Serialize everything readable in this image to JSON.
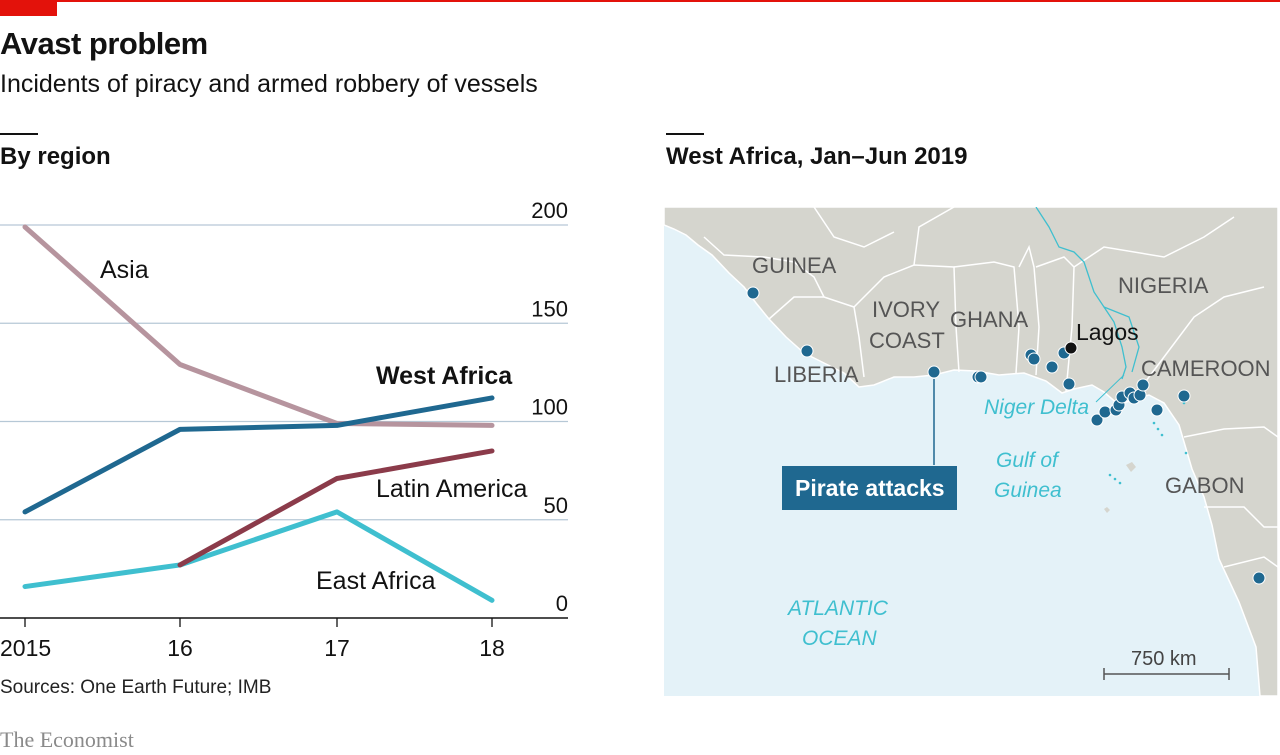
{
  "header": {
    "title": "Avast problem",
    "subtitle": "Incidents of piracy and armed robbery of vessels"
  },
  "left_panel": {
    "heading": "By region"
  },
  "right_panel": {
    "heading": "West Africa, Jan–Jun 2019"
  },
  "footer": {
    "source": "Sources: One Earth Future; IMB",
    "brand": "The Economist"
  },
  "colors": {
    "brand_red": "#e3120b",
    "asia": "#b6949e",
    "west_africa": "#1f6890",
    "latin_america": "#8b3b4a",
    "east_africa": "#3fbfcf",
    "sea": "#e4f2f8",
    "land": "#d5d5ce",
    "attack_dot": "#1f6890"
  },
  "chart_data": [
    {
      "type": "line",
      "title": "By region",
      "x": [
        "2015",
        "16",
        "17",
        "18"
      ],
      "ylim": [
        0,
        200
      ],
      "yticks": [
        0,
        50,
        100,
        150,
        200
      ],
      "grid": true,
      "y_axis_side": "right",
      "series": [
        {
          "name": "Asia",
          "values": [
            199,
            129,
            99,
            98
          ],
          "color": "#b6949e",
          "bold": false
        },
        {
          "name": "West Africa",
          "values": [
            54,
            96,
            98,
            112
          ],
          "color": "#1f6890",
          "bold": true
        },
        {
          "name": "Latin America",
          "values": [
            null,
            27,
            71,
            85
          ],
          "color": "#8b3b4a",
          "bold": false
        },
        {
          "name": "East Africa",
          "values": [
            16,
            27,
            54,
            9
          ],
          "color": "#3fbfcf",
          "bold": false
        }
      ]
    }
  ],
  "map": {
    "countries": [
      "GUINEA",
      "LIBERIA",
      "IVORY COAST",
      "GHANA",
      "NIGERIA",
      "CAMEROON",
      "GABON"
    ],
    "city": "Lagos",
    "delta_label": "Niger Delta",
    "gulf_label": [
      "Gulf of",
      "Guinea"
    ],
    "ocean_label": [
      "ATLANTIC",
      "OCEAN"
    ],
    "legend_label": "Pirate attacks",
    "scale_label": "750 km"
  }
}
